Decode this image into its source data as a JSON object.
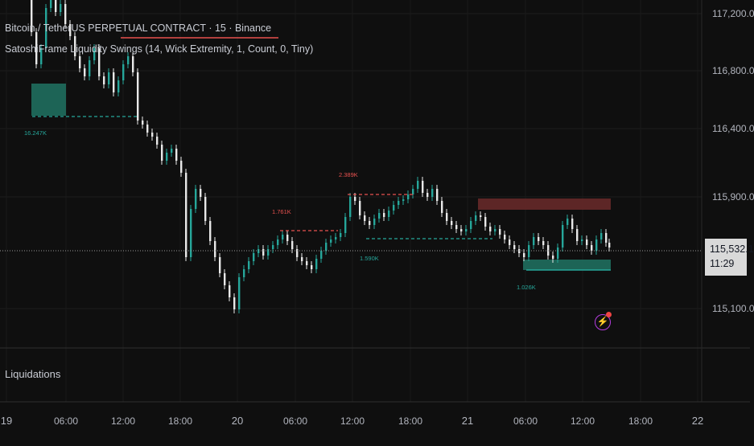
{
  "header": {
    "symbol_title": "Bitcoin / TetherUS PERPETUAL CONTRACT · 15 · Binance",
    "indicator": "SatoshiFrame Liquidity Swings (14, Wick Extremity, 1, Count, 0, Tiny)"
  },
  "price_axis": {
    "labels": [
      "117,200.0",
      "116,800.0",
      "116,400.0",
      "115,900.0",
      "115,100.0"
    ],
    "current_price": "115,532.1",
    "countdown": "11:29"
  },
  "time_axis": {
    "labels": [
      "19",
      "06:00",
      "12:00",
      "18:00",
      "20",
      "06:00",
      "12:00",
      "18:00",
      "21",
      "06:00",
      "12:00",
      "18:00",
      "22"
    ]
  },
  "annotations": {
    "swing_labels": [
      "16.247K",
      "1.761K",
      "2.389K",
      "1.590K",
      "1.026K"
    ]
  },
  "lower_pane": {
    "title": "Liquidations"
  },
  "colors": {
    "up": "#26a69a",
    "down": "#e8e8e8",
    "bullish_zone": "#1f6e5e",
    "bearish_zone": "#6b2a2a",
    "bear_line": "#e8514f",
    "bull_line": "#26a69a",
    "alert_icon": "#b63de0"
  },
  "icons": {
    "alert": "lightning-bolt-icon"
  }
}
